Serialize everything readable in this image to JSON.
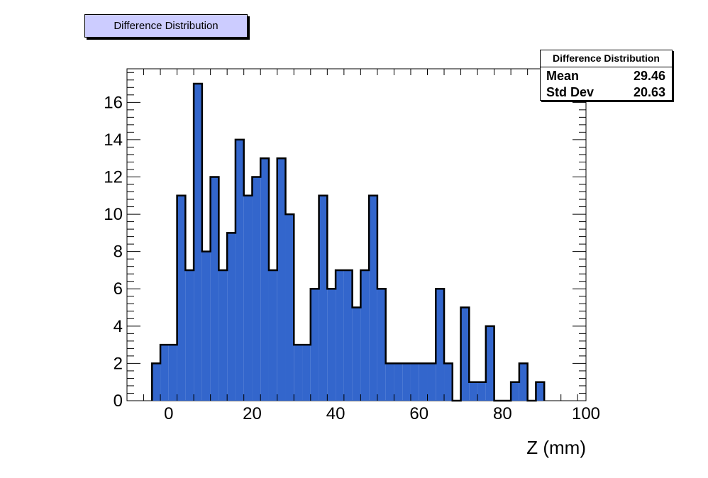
{
  "title_box": {
    "text": "Difference  Distribution"
  },
  "stats": {
    "title": "Difference Distribution",
    "rows": [
      {
        "label": "Mean",
        "value": "29.46"
      },
      {
        "label": "Std Dev",
        "value": "20.63"
      }
    ]
  },
  "chart_data": {
    "type": "bar",
    "title": "Difference  Distribution",
    "xlabel": "Z (mm)",
    "ylabel": "",
    "xlim": [
      -10,
      100
    ],
    "ylim": [
      0,
      17.8
    ],
    "bin_width": 2,
    "bin_edges_start": -4,
    "values": [
      2,
      3,
      3,
      11,
      7,
      17,
      8,
      12,
      7,
      9,
      14,
      11,
      12,
      13,
      7,
      13,
      10,
      3,
      3,
      6,
      11,
      6,
      7,
      7,
      5,
      7,
      11,
      6,
      2,
      2,
      2,
      2,
      2,
      2,
      6,
      2,
      0,
      5,
      1,
      1,
      4,
      0,
      0,
      1,
      2,
      0,
      1
    ],
    "x_ticks": [
      0,
      20,
      40,
      60,
      80,
      100
    ],
    "y_ticks": [
      0,
      2,
      4,
      6,
      8,
      10,
      12,
      14,
      16
    ],
    "fill_color": "#3366cc",
    "line_color": "#000000",
    "grid": false,
    "legend": "none"
  }
}
